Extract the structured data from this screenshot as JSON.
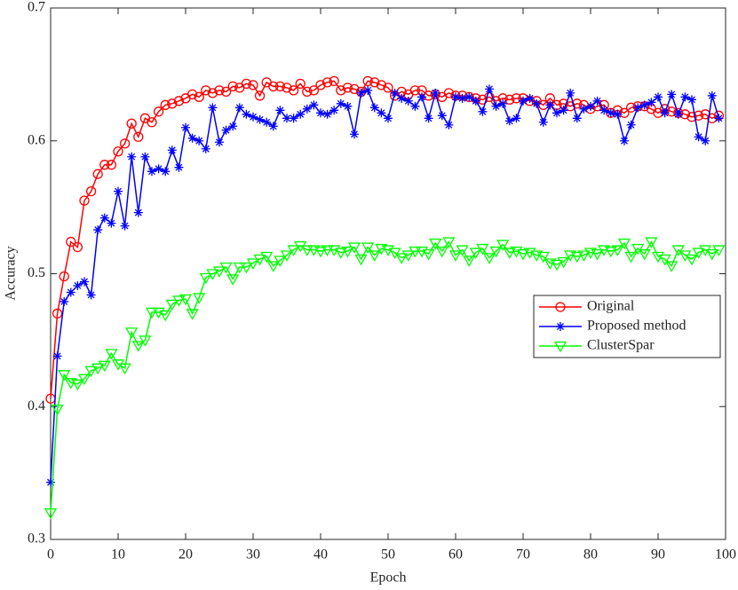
{
  "chart_data": {
    "type": "line",
    "xlabel": "Epoch",
    "ylabel": "Accuracy",
    "xlim": [
      0,
      100
    ],
    "ylim": [
      0.3,
      0.7
    ],
    "xticks": [
      0,
      10,
      20,
      30,
      40,
      50,
      60,
      70,
      80,
      90,
      100
    ],
    "yticks": [
      0.3,
      0.4,
      0.5,
      0.6,
      0.7
    ],
    "legend_location": "east",
    "x": [
      0,
      1,
      2,
      3,
      4,
      5,
      6,
      7,
      8,
      9,
      10,
      11,
      12,
      13,
      14,
      15,
      16,
      17,
      18,
      19,
      20,
      21,
      22,
      23,
      24,
      25,
      26,
      27,
      28,
      29,
      30,
      31,
      32,
      33,
      34,
      35,
      36,
      37,
      38,
      39,
      40,
      41,
      42,
      43,
      44,
      45,
      46,
      47,
      48,
      49,
      50,
      51,
      52,
      53,
      54,
      55,
      56,
      57,
      58,
      59,
      60,
      61,
      62,
      63,
      64,
      65,
      66,
      67,
      68,
      69,
      70,
      71,
      72,
      73,
      74,
      75,
      76,
      77,
      78,
      79,
      80,
      81,
      82,
      83,
      84,
      85,
      86,
      87,
      88,
      89,
      90,
      91,
      92,
      93,
      94,
      95,
      96,
      97,
      98,
      99
    ],
    "series": [
      {
        "name": "Original",
        "color": "#ff0000",
        "marker": "circle",
        "values": [
          0.406,
          0.47,
          0.498,
          0.524,
          0.52,
          0.555,
          0.562,
          0.575,
          0.582,
          0.582,
          0.592,
          0.598,
          0.613,
          0.603,
          0.617,
          0.614,
          0.622,
          0.627,
          0.628,
          0.63,
          0.632,
          0.635,
          0.633,
          0.638,
          0.636,
          0.638,
          0.637,
          0.641,
          0.64,
          0.643,
          0.642,
          0.634,
          0.644,
          0.641,
          0.641,
          0.64,
          0.638,
          0.643,
          0.637,
          0.638,
          0.642,
          0.644,
          0.645,
          0.638,
          0.64,
          0.639,
          0.637,
          0.645,
          0.644,
          0.642,
          0.64,
          0.634,
          0.637,
          0.635,
          0.638,
          0.638,
          0.634,
          0.635,
          0.633,
          0.636,
          0.634,
          0.634,
          0.633,
          0.632,
          0.631,
          0.633,
          0.63,
          0.632,
          0.631,
          0.632,
          0.632,
          0.63,
          0.63,
          0.627,
          0.632,
          0.627,
          0.628,
          0.626,
          0.628,
          0.627,
          0.624,
          0.626,
          0.627,
          0.621,
          0.623,
          0.621,
          0.625,
          0.626,
          0.626,
          0.624,
          0.621,
          0.624,
          0.622,
          0.621,
          0.62,
          0.618,
          0.619,
          0.62,
          0.617,
          0.619
        ]
      },
      {
        "name": "Proposed method",
        "color": "#0000ff",
        "marker": "asterisk",
        "values": [
          0.343,
          0.438,
          0.479,
          0.486,
          0.491,
          0.494,
          0.484,
          0.533,
          0.542,
          0.538,
          0.562,
          0.536,
          0.588,
          0.546,
          0.588,
          0.577,
          0.579,
          0.577,
          0.593,
          0.58,
          0.61,
          0.602,
          0.6,
          0.594,
          0.625,
          0.599,
          0.608,
          0.611,
          0.625,
          0.62,
          0.618,
          0.616,
          0.614,
          0.611,
          0.623,
          0.617,
          0.617,
          0.62,
          0.624,
          0.627,
          0.621,
          0.62,
          0.623,
          0.628,
          0.626,
          0.605,
          0.636,
          0.638,
          0.625,
          0.621,
          0.617,
          0.636,
          0.632,
          0.63,
          0.626,
          0.633,
          0.617,
          0.636,
          0.619,
          0.612,
          0.633,
          0.632,
          0.633,
          0.63,
          0.622,
          0.639,
          0.626,
          0.628,
          0.615,
          0.617,
          0.63,
          0.632,
          0.628,
          0.614,
          0.627,
          0.621,
          0.623,
          0.636,
          0.617,
          0.624,
          0.626,
          0.63,
          0.623,
          0.621,
          0.62,
          0.6,
          0.612,
          0.625,
          0.627,
          0.629,
          0.633,
          0.621,
          0.635,
          0.62,
          0.633,
          0.631,
          0.603,
          0.6,
          0.634,
          0.617
        ]
      },
      {
        "name": "ClusterSpar",
        "color": "#00ff00",
        "marker": "triangle-down",
        "values": [
          0.32,
          0.398,
          0.424,
          0.418,
          0.417,
          0.421,
          0.427,
          0.429,
          0.431,
          0.44,
          0.432,
          0.429,
          0.456,
          0.446,
          0.45,
          0.471,
          0.471,
          0.469,
          0.477,
          0.48,
          0.481,
          0.47,
          0.482,
          0.497,
          0.5,
          0.502,
          0.505,
          0.496,
          0.505,
          0.505,
          0.508,
          0.511,
          0.513,
          0.506,
          0.51,
          0.514,
          0.518,
          0.521,
          0.518,
          0.518,
          0.517,
          0.518,
          0.518,
          0.516,
          0.517,
          0.52,
          0.511,
          0.52,
          0.514,
          0.519,
          0.518,
          0.516,
          0.512,
          0.514,
          0.517,
          0.517,
          0.515,
          0.523,
          0.517,
          0.524,
          0.514,
          0.518,
          0.51,
          0.516,
          0.519,
          0.512,
          0.517,
          0.522,
          0.516,
          0.517,
          0.515,
          0.516,
          0.514,
          0.513,
          0.508,
          0.507,
          0.509,
          0.514,
          0.513,
          0.514,
          0.516,
          0.515,
          0.518,
          0.517,
          0.518,
          0.523,
          0.513,
          0.519,
          0.515,
          0.524,
          0.513,
          0.511,
          0.506,
          0.518,
          0.514,
          0.511,
          0.516,
          0.518,
          0.515,
          0.518
        ]
      }
    ]
  }
}
